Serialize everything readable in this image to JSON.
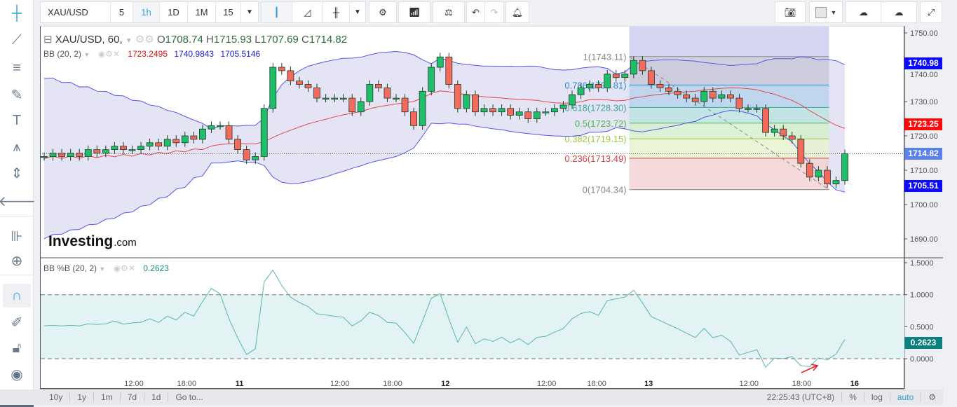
{
  "toolbar": {
    "symbol": "XAU/USD",
    "intervals": [
      "5",
      "1h",
      "1D",
      "1M",
      "15"
    ],
    "active_interval": "1h"
  },
  "legend": {
    "title": "XAU/USD, 60,",
    "o_label": "O",
    "o": "1708.74",
    "h_label": "H",
    "h": "1715.93",
    "l_label": "L",
    "l": "1707.69",
    "c_label": "C",
    "c": "1714.82",
    "bb_label": "BB (20, 2)",
    "bb_mid": "1723.2495",
    "bb_upper": "1740.9843",
    "bb_lower": "1705.5146",
    "pb_label": "BB %B (20, 2)",
    "pb_value": "0.2623"
  },
  "logo": {
    "text": "Investing",
    "suffix": ".com"
  },
  "price_tags": {
    "upper": "1740.98",
    "mid": "1723.25",
    "last": "1714.82",
    "lower": "1705.51",
    "pb": "0.2623"
  },
  "bottom": {
    "ranges": [
      "10y",
      "1y",
      "1m",
      "7d",
      "1d",
      "Go to..."
    ],
    "clock": "22:25:43 (UTC+8)",
    "opts": [
      "%",
      "log",
      "auto"
    ]
  },
  "colors": {
    "up": "#1fbf6a",
    "down": "#f46b5d",
    "bb_mid": "#e04a4a",
    "bb_band": "#5555ee",
    "pb_line": "#5ab4b4",
    "accent": "#2a9fd8"
  },
  "chart_data": {
    "type": "candlestick",
    "title": "XAU/USD, 60",
    "ylim": [
      1686,
      1752
    ],
    "yticks": [
      "1750.00",
      "1740.00",
      "1730.00",
      "1720.00",
      "1710.00",
      "1700.00",
      "1690.00"
    ],
    "ytick_values": [
      1750,
      1740,
      1730,
      1720,
      1710,
      1700,
      1690
    ],
    "closes": [
      1714,
      1715,
      1714,
      1715,
      1714,
      1716,
      1715,
      1716,
      1717,
      1716,
      1716,
      1717,
      1718,
      1717,
      1719,
      1718,
      1720,
      1719,
      1722,
      1723,
      1723,
      1719,
      1716,
      1713,
      1714,
      1728,
      1740,
      1739,
      1736,
      1735,
      1734,
      1731,
      1731,
      1731,
      1731,
      1727,
      1730,
      1735,
      1734,
      1731,
      1731,
      1727,
      1723,
      1733,
      1740,
      1743,
      1735,
      1728,
      1732,
      1727,
      1728,
      1727,
      1728,
      1726,
      1727,
      1725,
      1727,
      1727,
      1728,
      1729,
      1732,
      1734,
      1735,
      1734,
      1738,
      1737,
      1738,
      1742,
      1739,
      1735,
      1734,
      1733,
      1732,
      1731,
      1730,
      1733,
      1731,
      1732,
      1731,
      1728,
      1728,
      1728,
      1721,
      1722,
      1720,
      1719,
      1712,
      1708,
      1710,
      1706,
      1707,
      1714.82
    ],
    "xticks": [
      {
        "label": "12:00",
        "at": 10.2
      },
      {
        "label": "18:00",
        "at": 16.2
      },
      {
        "label": "11",
        "at": 22.2
      },
      {
        "label": "12:00",
        "at": 33.6
      },
      {
        "label": "18:00",
        "at": 39.6
      },
      {
        "label": "12",
        "at": 45.6
      },
      {
        "label": "12:00",
        "at": 57.1
      },
      {
        "label": "18:00",
        "at": 62.8
      },
      {
        "label": "13",
        "at": 68.7
      },
      {
        "label": "12:00",
        "at": 80.1
      },
      {
        "label": "18:00",
        "at": 86.1
      },
      {
        "label": "16",
        "at": 92.1
      }
    ],
    "fib": {
      "levels": [
        {
          "r": "1",
          "v": "1743.11",
          "p": 1743.11,
          "c": "#888888"
        },
        {
          "r": "0.786",
          "v": "1734.81",
          "p": 1734.81,
          "c": "#2a8fd0"
        },
        {
          "r": "0.618",
          "v": "1728.30",
          "p": 1728.3,
          "c": "#3aa89a"
        },
        {
          "r": "0.5",
          "v": "1723.72",
          "p": 1723.72,
          "c": "#4cb84c"
        },
        {
          "r": "0.382",
          "v": "1719.15",
          "p": 1719.15,
          "c": "#9cc83c"
        },
        {
          "r": "0.236",
          "v": "1713.49",
          "p": 1713.49,
          "c": "#d64040"
        },
        {
          "r": "0",
          "v": "1704.34",
          "p": 1704.34,
          "c": "#888888"
        }
      ],
      "from_index": 66.5,
      "to_index": 89.2
    },
    "pb": {
      "ylim": [
        -0.25,
        1.55
      ],
      "yticks": [
        "1.5000",
        "1.0000",
        "0.5000",
        "0.0000"
      ],
      "ytick_values": [
        1.5,
        1.0,
        0.5,
        0.0
      ],
      "bands": [
        0,
        1
      ]
    }
  }
}
